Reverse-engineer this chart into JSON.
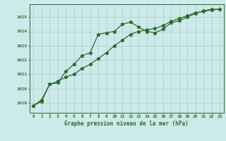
{
  "title": "Graphe pression niveau de la mer (hPa)",
  "background_color": "#cceaea",
  "grid_color": "#aacece",
  "line_color": "#2d6b2d",
  "x_labels": [
    "0",
    "1",
    "2",
    "3",
    "4",
    "5",
    "6",
    "7",
    "8",
    "9",
    "10",
    "11",
    "12",
    "13",
    "14",
    "15",
    "16",
    "17",
    "18",
    "19",
    "20",
    "21",
    "22",
    "23"
  ],
  "ylim": [
    1018.3,
    1025.9
  ],
  "yticks": [
    1019,
    1020,
    1021,
    1022,
    1023,
    1024,
    1025
  ],
  "series1": [
    1018.8,
    1019.1,
    1020.3,
    1020.4,
    1021.2,
    1021.7,
    1022.3,
    1022.5,
    1023.8,
    1023.9,
    1024.0,
    1024.5,
    1024.65,
    1024.3,
    1024.0,
    1023.9,
    1024.15,
    1024.6,
    1024.75,
    1025.0,
    1025.25,
    1025.45,
    1025.55,
    1025.55
  ],
  "series2": [
    1018.8,
    1019.2,
    1020.3,
    1020.5,
    1020.8,
    1021.0,
    1021.4,
    1021.7,
    1022.1,
    1022.5,
    1023.0,
    1023.4,
    1023.8,
    1024.0,
    1024.1,
    1024.2,
    1024.4,
    1024.7,
    1024.9,
    1025.1,
    1025.3,
    1025.4,
    1025.5,
    1025.55
  ]
}
